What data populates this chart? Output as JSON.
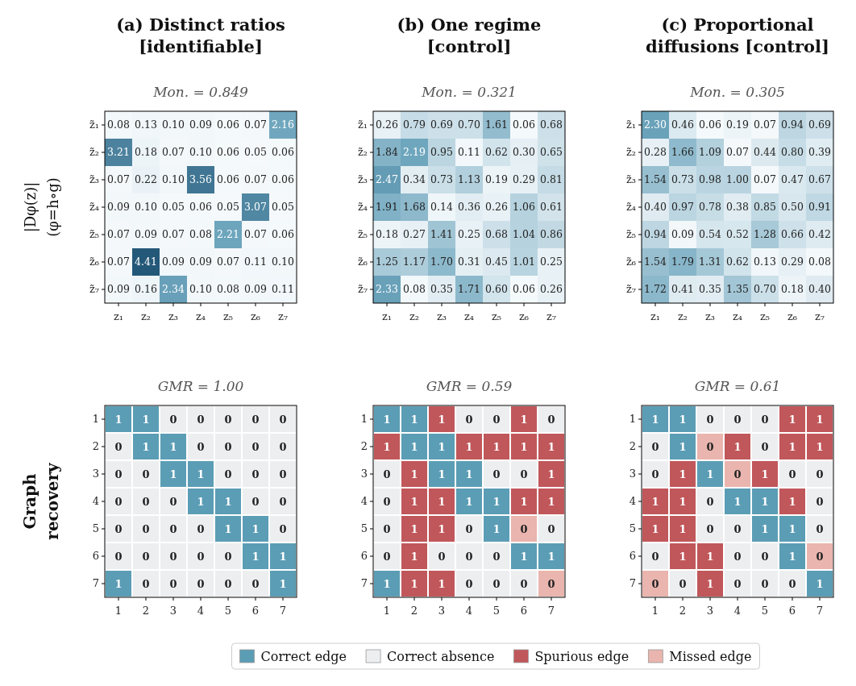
{
  "chart_data": [
    {
      "type": "heatmap",
      "title": "(a) Distinct ratios [identifiable]",
      "subtitle": "Mon. = 0.849",
      "ylabel": "|Dφ(z)|\n(φ=h∘g)",
      "cell_labels": [
        [
          "0.08",
          "0.13",
          "0.10",
          "0.09",
          "0.06",
          "0.07",
          "2.16"
        ],
        [
          "3.21",
          "0.18",
          "0.07",
          "0.10",
          "0.06",
          "0.05",
          "0.06"
        ],
        [
          "0.07",
          "0.22",
          "0.10",
          "3.56",
          "0.06",
          "0.07",
          "0.06"
        ],
        [
          "0.09",
          "0.10",
          "0.05",
          "0.06",
          "0.05",
          "3.07",
          "0.05"
        ],
        [
          "0.07",
          "0.09",
          "0.07",
          "0.08",
          "2.21",
          "0.07",
          "0.06"
        ],
        [
          "0.07",
          "4.41",
          "0.09",
          "0.09",
          "0.07",
          "0.11",
          "0.10"
        ],
        [
          "0.09",
          "0.16",
          "2.34",
          "0.10",
          "0.08",
          "0.09",
          "0.11"
        ]
      ],
      "categories": [
        "z₁",
        "z₂",
        "z₃",
        "z₄",
        "z₅",
        "z₆",
        "z₇"
      ],
      "y_categories": [
        "z̃₁",
        "z̃₂",
        "z̃₃",
        "z̃₄",
        "z̃₅",
        "z̃₆",
        "z̃₇"
      ],
      "cells": [
        [
          0.08,
          0.13,
          0.1,
          0.09,
          0.06,
          0.07,
          2.16
        ],
        [
          3.21,
          0.18,
          0.07,
          0.1,
          0.06,
          0.05,
          0.06
        ],
        [
          0.07,
          0.22,
          0.1,
          3.56,
          0.06,
          0.07,
          0.06
        ],
        [
          0.09,
          0.1,
          0.05,
          0.06,
          0.05,
          3.07,
          0.05
        ],
        [
          0.07,
          0.09,
          0.07,
          0.08,
          2.21,
          0.07,
          0.06
        ],
        [
          0.07,
          4.41,
          0.09,
          0.09,
          0.07,
          0.11,
          0.1
        ],
        [
          0.09,
          0.16,
          2.34,
          0.1,
          0.08,
          0.09,
          0.11
        ]
      ]
    },
    {
      "type": "heatmap",
      "title": "(b) One regime [control]",
      "subtitle": "Mon. = 0.321",
      "cell_labels": [
        [
          "0.26",
          "0.79",
          "0.69",
          "0.70",
          "1.61",
          "0.06",
          "0.68"
        ],
        [
          "1.84",
          "2.19",
          "0.95",
          "0.11",
          "0.62",
          "0.30",
          "0.65"
        ],
        [
          "2.47",
          "0.34",
          "0.73",
          "1.13",
          "0.19",
          "0.29",
          "0.81"
        ],
        [
          "1.91",
          "1.68",
          "0.14",
          "0.36",
          "0.26",
          "1.06",
          "0.61"
        ],
        [
          "0.18",
          "0.27",
          "1.41",
          "0.25",
          "0.68",
          "1.04",
          "0.86"
        ],
        [
          "1.25",
          "1.17",
          "1.70",
          "0.31",
          "0.45",
          "1.01",
          "0.25"
        ],
        [
          "2.33",
          "0.08",
          "0.35",
          "1.71",
          "0.60",
          "0.06",
          "0.26"
        ]
      ],
      "categories": [
        "z₁",
        "z₂",
        "z₃",
        "z₄",
        "z₅",
        "z₆",
        "z₇"
      ],
      "y_categories": [
        "z̃₁",
        "z̃₂",
        "z̃₃",
        "z̃₄",
        "z̃₅",
        "z̃₆",
        "z̃₇"
      ],
      "cells": [
        [
          0.26,
          0.79,
          0.69,
          0.7,
          1.61,
          0.06,
          0.68
        ],
        [
          1.84,
          2.19,
          0.95,
          0.11,
          0.62,
          0.3,
          0.65
        ],
        [
          2.47,
          0.34,
          0.73,
          1.13,
          0.19,
          0.29,
          0.81
        ],
        [
          1.91,
          1.68,
          0.14,
          0.36,
          0.26,
          1.06,
          0.61
        ],
        [
          0.18,
          0.27,
          1.41,
          0.25,
          0.68,
          1.04,
          0.86
        ],
        [
          1.25,
          1.17,
          1.7,
          0.31,
          0.45,
          1.01,
          0.25
        ],
        [
          2.33,
          0.08,
          0.35,
          1.71,
          0.6,
          0.06,
          0.26
        ]
      ]
    },
    {
      "type": "heatmap",
      "title": "(c) Proportional diffusions [control]",
      "subtitle": "Mon. = 0.305",
      "cell_labels": [
        [
          "2.30",
          "0.46",
          "0.06",
          "0.19",
          "0.07",
          "0.94",
          "0.69"
        ],
        [
          "0.28",
          "1.66",
          "1.09",
          "0.07",
          "0.44",
          "0.80",
          "0.39"
        ],
        [
          "1.54",
          "0.73",
          "0.98",
          "1.00",
          "0.07",
          "0.47",
          "0.67"
        ],
        [
          "0.40",
          "0.97",
          "0.78",
          "0.38",
          "0.85",
          "0.50",
          "0.91"
        ],
        [
          "0.94",
          "0.09",
          "0.54",
          "0.52",
          "1.28",
          "0.66",
          "0.42"
        ],
        [
          "1.54",
          "1.79",
          "1.31",
          "0.62",
          "0.13",
          "0.29",
          "0.08"
        ],
        [
          "1.72",
          "0.41",
          "0.35",
          "1.35",
          "0.70",
          "0.18",
          "0.40"
        ]
      ],
      "categories": [
        "z₁",
        "z₂",
        "z₃",
        "z₄",
        "z₅",
        "z₆",
        "z₇"
      ],
      "y_categories": [
        "z̃₁",
        "z̃₂",
        "z̃₃",
        "z̃₄",
        "z̃₅",
        "z̃₆",
        "z̃₇"
      ],
      "cells": [
        [
          2.3,
          0.46,
          0.06,
          0.19,
          0.07,
          0.94,
          0.69
        ],
        [
          0.28,
          1.66,
          1.09,
          0.07,
          0.44,
          0.8,
          0.39
        ],
        [
          1.54,
          0.73,
          0.98,
          1.0,
          0.07,
          0.47,
          0.67
        ],
        [
          0.4,
          0.97,
          0.78,
          0.38,
          0.85,
          0.5,
          0.91
        ],
        [
          0.94,
          0.09,
          0.54,
          0.52,
          1.28,
          0.66,
          0.42
        ],
        [
          1.54,
          1.79,
          1.31,
          0.62,
          0.13,
          0.29,
          0.08
        ],
        [
          1.72,
          0.41,
          0.35,
          1.35,
          0.7,
          0.18,
          0.4
        ]
      ]
    },
    {
      "type": "heatmap",
      "subtitle": "GMR = 1.00",
      "ylabel": "Graph\nrecovery",
      "data_labels": true,
      "categories": [
        "1",
        "2",
        "3",
        "4",
        "5",
        "6",
        "7"
      ],
      "y_categories": [
        "1",
        "2",
        "3",
        "4",
        "5",
        "6",
        "7"
      ],
      "cells": [
        [
          1,
          1,
          0,
          0,
          0,
          0,
          0
        ],
        [
          0,
          1,
          1,
          0,
          0,
          0,
          0
        ],
        [
          0,
          0,
          1,
          1,
          0,
          0,
          0
        ],
        [
          0,
          0,
          0,
          1,
          1,
          0,
          0
        ],
        [
          0,
          0,
          0,
          0,
          1,
          1,
          0
        ],
        [
          0,
          0,
          0,
          0,
          0,
          1,
          1
        ],
        [
          1,
          0,
          0,
          0,
          0,
          0,
          1
        ]
      ],
      "colors": [
        [
          "#5b9db5",
          "#5b9db5",
          "#eceef0",
          "#eceef0",
          "#eceef0",
          "#eceef0",
          "#eceef0"
        ],
        [
          "#eceef0",
          "#5b9db5",
          "#5b9db5",
          "#eceef0",
          "#eceef0",
          "#eceef0",
          "#eceef0"
        ],
        [
          "#eceef0",
          "#eceef0",
          "#5b9db5",
          "#5b9db5",
          "#eceef0",
          "#eceef0",
          "#eceef0"
        ],
        [
          "#eceef0",
          "#eceef0",
          "#eceef0",
          "#5b9db5",
          "#5b9db5",
          "#eceef0",
          "#eceef0"
        ],
        [
          "#eceef0",
          "#eceef0",
          "#eceef0",
          "#eceef0",
          "#5b9db5",
          "#5b9db5",
          "#eceef0"
        ],
        [
          "#eceef0",
          "#eceef0",
          "#eceef0",
          "#eceef0",
          "#eceef0",
          "#5b9db5",
          "#5b9db5"
        ],
        [
          "#5b9db5",
          "#eceef0",
          "#eceef0",
          "#eceef0",
          "#eceef0",
          "#eceef0",
          "#5b9db5"
        ]
      ]
    },
    {
      "type": "heatmap",
      "subtitle": "GMR = 0.59",
      "data_labels": true,
      "categories": [
        "1",
        "2",
        "3",
        "4",
        "5",
        "6",
        "7"
      ],
      "y_categories": [
        "1",
        "2",
        "3",
        "4",
        "5",
        "6",
        "7"
      ],
      "cells": [
        [
          1,
          1,
          1,
          0,
          0,
          1,
          0
        ],
        [
          1,
          1,
          1,
          1,
          1,
          1,
          1
        ],
        [
          0,
          1,
          1,
          1,
          0,
          0,
          1
        ],
        [
          0,
          1,
          1,
          1,
          1,
          1,
          1
        ],
        [
          0,
          1,
          1,
          0,
          1,
          0,
          0
        ],
        [
          0,
          1,
          0,
          0,
          0,
          1,
          1
        ],
        [
          1,
          1,
          1,
          0,
          0,
          0,
          0
        ]
      ],
      "colors": [
        [
          "#5b9db5",
          "#5b9db5",
          "#c0575a",
          "#eceef0",
          "#eceef0",
          "#c0575a",
          "#eceef0"
        ],
        [
          "#c0575a",
          "#5b9db5",
          "#5b9db5",
          "#c0575a",
          "#c0575a",
          "#c0575a",
          "#c0575a"
        ],
        [
          "#eceef0",
          "#c0575a",
          "#5b9db5",
          "#5b9db5",
          "#eceef0",
          "#eceef0",
          "#c0575a"
        ],
        [
          "#eceef0",
          "#c0575a",
          "#c0575a",
          "#5b9db5",
          "#5b9db5",
          "#c0575a",
          "#c0575a"
        ],
        [
          "#eceef0",
          "#c0575a",
          "#c0575a",
          "#eceef0",
          "#5b9db5",
          "#e9b5ae",
          "#eceef0"
        ],
        [
          "#eceef0",
          "#c0575a",
          "#eceef0",
          "#eceef0",
          "#eceef0",
          "#5b9db5",
          "#5b9db5"
        ],
        [
          "#5b9db5",
          "#c0575a",
          "#c0575a",
          "#eceef0",
          "#eceef0",
          "#eceef0",
          "#e9b5ae"
        ]
      ]
    },
    {
      "type": "heatmap",
      "subtitle": "GMR = 0.61",
      "data_labels": true,
      "categories": [
        "1",
        "2",
        "3",
        "4",
        "5",
        "6",
        "7"
      ],
      "y_categories": [
        "1",
        "2",
        "3",
        "4",
        "5",
        "6",
        "7"
      ],
      "cells": [
        [
          1,
          1,
          0,
          0,
          0,
          1,
          1
        ],
        [
          0,
          1,
          0,
          1,
          0,
          1,
          1
        ],
        [
          0,
          1,
          1,
          0,
          1,
          0,
          0
        ],
        [
          1,
          1,
          0,
          1,
          1,
          1,
          0
        ],
        [
          1,
          1,
          0,
          0,
          1,
          1,
          0
        ],
        [
          0,
          1,
          1,
          0,
          0,
          1,
          0
        ],
        [
          0,
          0,
          1,
          0,
          0,
          0,
          1
        ]
      ],
      "colors": [
        [
          "#5b9db5",
          "#5b9db5",
          "#eceef0",
          "#eceef0",
          "#eceef0",
          "#c0575a",
          "#c0575a"
        ],
        [
          "#eceef0",
          "#5b9db5",
          "#e9b5ae",
          "#c0575a",
          "#eceef0",
          "#c0575a",
          "#c0575a"
        ],
        [
          "#eceef0",
          "#c0575a",
          "#5b9db5",
          "#e9b5ae",
          "#c0575a",
          "#eceef0",
          "#eceef0"
        ],
        [
          "#c0575a",
          "#c0575a",
          "#eceef0",
          "#5b9db5",
          "#5b9db5",
          "#c0575a",
          "#eceef0"
        ],
        [
          "#c0575a",
          "#c0575a",
          "#eceef0",
          "#eceef0",
          "#5b9db5",
          "#5b9db5",
          "#eceef0"
        ],
        [
          "#eceef0",
          "#c0575a",
          "#c0575a",
          "#eceef0",
          "#eceef0",
          "#5b9db5",
          "#e9b5ae"
        ],
        [
          "#e9b5ae",
          "#eceef0",
          "#c0575a",
          "#eceef0",
          "#eceef0",
          "#eceef0",
          "#5b9db5"
        ]
      ]
    },
    {
      "type": "other",
      "categories": [
        "Correct edge",
        "Correct absence",
        "Spurious edge",
        "Missed edge"
      ],
      "colors": [
        "#5b9db5",
        "#eceef0",
        "#c0575a",
        "#e9b5ae"
      ]
    }
  ]
}
